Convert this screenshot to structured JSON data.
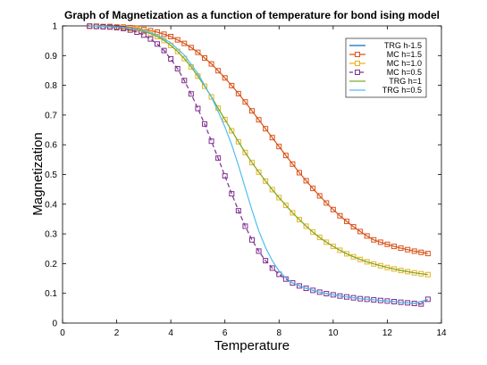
{
  "chart_data": {
    "type": "line",
    "title": "Graph of Magnetization as a function of temperature for bond ising model",
    "xlabel": "Temperature",
    "ylabel": "Magnetization",
    "xlim": [
      0,
      14
    ],
    "ylim": [
      0,
      1
    ],
    "xticks": [
      "0",
      "2",
      "4",
      "6",
      "8",
      "10",
      "12",
      "14"
    ],
    "yticks": [
      "0",
      "0.1",
      "0.2",
      "0.3",
      "0.4",
      "0.5",
      "0.6",
      "0.7",
      "0.8",
      "0.9",
      "1"
    ],
    "grid": false,
    "legend_position": "top-right",
    "series": [
      {
        "name": "TRG h-1.5",
        "color": "#0072BD",
        "style": "line",
        "hidden": true,
        "x": [
          1,
          13.5
        ],
        "y": [
          0.999,
          0.235
        ]
      },
      {
        "name": "MC h=1.5",
        "color": "#D95319",
        "style": "line+square",
        "x": [
          1.0,
          1.25,
          1.5,
          1.75,
          2.0,
          2.25,
          2.5,
          2.75,
          3.0,
          3.25,
          3.5,
          3.75,
          4.0,
          4.25,
          4.5,
          4.75,
          5.0,
          5.25,
          5.5,
          5.75,
          6.0,
          6.25,
          6.5,
          6.75,
          7.0,
          7.25,
          7.5,
          7.75,
          8.0,
          8.25,
          8.5,
          8.75,
          9.0,
          9.25,
          9.5,
          9.75,
          10.0,
          10.25,
          10.5,
          10.75,
          11.0,
          11.25,
          11.5,
          11.75,
          12.0,
          12.25,
          12.5,
          12.75,
          13.0,
          13.25,
          13.5
        ],
        "y": [
          0.999,
          0.999,
          0.998,
          0.998,
          0.997,
          0.996,
          0.994,
          0.992,
          0.988,
          0.984,
          0.979,
          0.972,
          0.964,
          0.953,
          0.941,
          0.927,
          0.911,
          0.892,
          0.872,
          0.849,
          0.825,
          0.799,
          0.772,
          0.744,
          0.714,
          0.684,
          0.654,
          0.624,
          0.594,
          0.564,
          0.535,
          0.506,
          0.479,
          0.453,
          0.428,
          0.404,
          0.382,
          0.361,
          0.342,
          0.324,
          0.308,
          0.293,
          0.28,
          0.272,
          0.265,
          0.258,
          0.252,
          0.247,
          0.242,
          0.238,
          0.234
        ]
      },
      {
        "name": "MC h=1.0",
        "color": "#EDB120",
        "style": "line+square",
        "x": [
          1.0,
          1.25,
          1.5,
          1.75,
          2.0,
          2.25,
          2.5,
          2.75,
          3.0,
          3.25,
          3.5,
          3.75,
          4.0,
          4.25,
          4.5,
          4.75,
          5.0,
          5.25,
          5.5,
          5.75,
          6.0,
          6.25,
          6.5,
          6.75,
          7.0,
          7.25,
          7.5,
          7.75,
          8.0,
          8.25,
          8.5,
          8.75,
          9.0,
          9.25,
          9.5,
          9.75,
          10.0,
          10.25,
          10.5,
          10.75,
          11.0,
          11.25,
          11.5,
          11.75,
          12.0,
          12.25,
          12.5,
          12.75,
          13.0,
          13.25,
          13.5
        ],
        "y": [
          0.999,
          0.999,
          0.998,
          0.997,
          0.996,
          0.994,
          0.991,
          0.987,
          0.981,
          0.974,
          0.964,
          0.951,
          0.934,
          0.914,
          0.89,
          0.862,
          0.831,
          0.797,
          0.761,
          0.723,
          0.685,
          0.647,
          0.61,
          0.574,
          0.54,
          0.508,
          0.478,
          0.449,
          0.422,
          0.396,
          0.371,
          0.348,
          0.326,
          0.306,
          0.288,
          0.272,
          0.258,
          0.245,
          0.233,
          0.223,
          0.214,
          0.206,
          0.199,
          0.193,
          0.187,
          0.182,
          0.177,
          0.173,
          0.169,
          0.166,
          0.163
        ]
      },
      {
        "name": "MC h=0.5",
        "color": "#7E2F8E",
        "style": "dashed+square",
        "x": [
          1.0,
          1.25,
          1.5,
          1.75,
          2.0,
          2.25,
          2.5,
          2.75,
          3.0,
          3.25,
          3.5,
          3.75,
          4.0,
          4.25,
          4.5,
          4.75,
          5.0,
          5.25,
          5.5,
          5.75,
          6.0,
          6.25,
          6.5,
          6.75,
          7.0,
          7.25,
          7.5,
          7.75,
          8.0,
          8.25,
          8.5,
          8.75,
          9.0,
          9.25,
          9.5,
          9.75,
          10.0,
          10.25,
          10.5,
          10.75,
          11.0,
          11.25,
          11.5,
          11.75,
          12.0,
          12.25,
          12.5,
          12.75,
          13.0,
          13.25,
          13.5
        ],
        "y": [
          0.999,
          0.998,
          0.997,
          0.996,
          0.994,
          0.991,
          0.986,
          0.979,
          0.969,
          0.956,
          0.939,
          0.917,
          0.889,
          0.856,
          0.816,
          0.771,
          0.722,
          0.67,
          0.612,
          0.555,
          0.495,
          0.435,
          0.378,
          0.326,
          0.28,
          0.242,
          0.21,
          0.185,
          0.164,
          0.148,
          0.135,
          0.125,
          0.117,
          0.11,
          0.104,
          0.099,
          0.095,
          0.091,
          0.088,
          0.085,
          0.082,
          0.08,
          0.078,
          0.076,
          0.074,
          0.072,
          0.07,
          0.068,
          0.066,
          0.064,
          0.08
        ]
      },
      {
        "name": "TRG h=1",
        "color": "#77AC30",
        "style": "line",
        "x": [
          1.0,
          1.25,
          1.5,
          1.75,
          2.0,
          2.25,
          2.5,
          2.75,
          3.0,
          3.25,
          3.5,
          3.75,
          4.0,
          4.25,
          4.5,
          4.75,
          5.0,
          5.25,
          5.5,
          5.75,
          6.0,
          6.25,
          6.5,
          6.75,
          7.0,
          7.25,
          7.5,
          7.75,
          8.0,
          8.25,
          8.5,
          8.75,
          9.0,
          9.25,
          9.5,
          9.75,
          10.0,
          10.25,
          10.5,
          10.75,
          11.0,
          11.25,
          11.5,
          11.75,
          12.0,
          12.25,
          12.5,
          12.75,
          13.0,
          13.25,
          13.5
        ],
        "y": [
          0.999,
          0.999,
          0.998,
          0.997,
          0.996,
          0.994,
          0.991,
          0.987,
          0.981,
          0.974,
          0.964,
          0.951,
          0.934,
          0.914,
          0.89,
          0.862,
          0.831,
          0.797,
          0.761,
          0.723,
          0.685,
          0.647,
          0.61,
          0.574,
          0.54,
          0.508,
          0.478,
          0.449,
          0.422,
          0.396,
          0.371,
          0.348,
          0.326,
          0.306,
          0.288,
          0.272,
          0.258,
          0.245,
          0.233,
          0.223,
          0.214,
          0.206,
          0.199,
          0.193,
          0.187,
          0.182,
          0.177,
          0.173,
          0.169,
          0.166,
          0.163
        ]
      },
      {
        "name": "TRG h=0.5",
        "color": "#4DBEEE",
        "style": "line",
        "x": [
          1.0,
          1.5,
          2.0,
          2.5,
          3.0,
          3.5,
          4.0,
          4.5,
          5.0,
          5.5,
          5.75,
          6.0,
          6.25,
          6.5,
          6.75,
          7.0,
          7.25,
          7.5,
          7.75,
          8.0,
          8.25,
          8.5,
          9.0,
          9.5,
          10.0,
          10.5,
          11.0,
          11.5,
          12.0,
          12.5,
          13.0,
          13.5
        ],
        "y": [
          0.999,
          0.998,
          0.996,
          0.992,
          0.984,
          0.969,
          0.943,
          0.902,
          0.84,
          0.76,
          0.712,
          0.66,
          0.6,
          0.53,
          0.455,
          0.38,
          0.31,
          0.255,
          0.21,
          0.175,
          0.152,
          0.135,
          0.117,
          0.104,
          0.095,
          0.088,
          0.082,
          0.078,
          0.074,
          0.07,
          0.066,
          0.08
        ]
      }
    ]
  }
}
